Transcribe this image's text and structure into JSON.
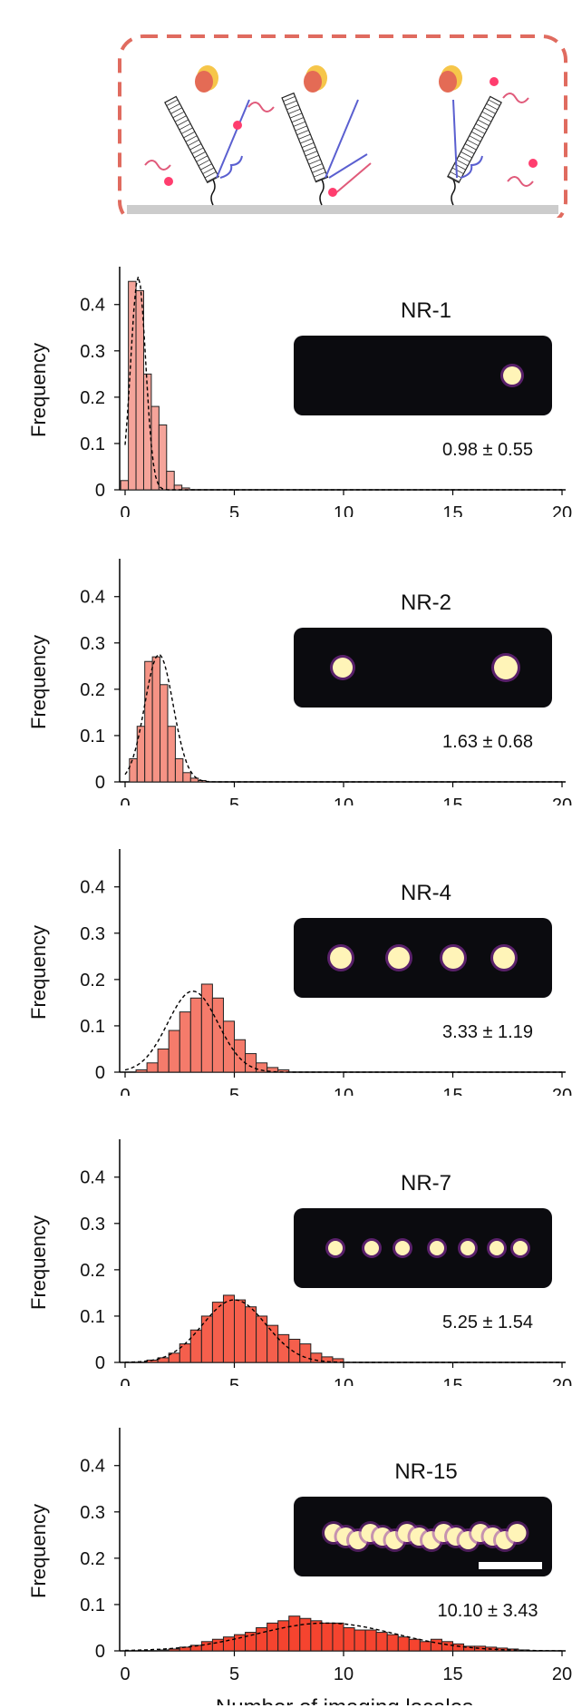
{
  "colors": {
    "border": "#e06b5f",
    "surface": "#cccccc",
    "hist_fills": [
      "#f5a49a",
      "#f59385",
      "#f57b6b",
      "#f55f4c",
      "#f5442f"
    ],
    "image_bg": "#0b0b0f",
    "spot": "#fff4b8",
    "spot_glow": "#8e2fa6"
  },
  "chart_data": [
    {
      "type": "bar",
      "label": "NR-1",
      "stat": "0.98 ± 0.55",
      "ylabel": "Frequency",
      "ylim": [
        0,
        0.47
      ],
      "xlim": [
        0,
        20
      ],
      "yticks": [
        "0",
        "0.1",
        "0.2",
        "0.3",
        "0.4"
      ],
      "xticks": [
        "0",
        "5",
        "10",
        "15",
        "20"
      ],
      "bin_width": 0.35,
      "bin_start": -0.2,
      "values": [
        0.02,
        0.45,
        0.43,
        0.25,
        0.18,
        0.14,
        0.04,
        0.01,
        0.004
      ],
      "fit": {
        "mean": 0.6,
        "sd": 0.34,
        "peak": 0.46
      },
      "spots": 1
    },
    {
      "type": "bar",
      "label": "NR-2",
      "stat": "1.63 ± 0.68",
      "ylabel": "Frequency",
      "ylim": [
        0,
        0.47
      ],
      "xlim": [
        0,
        20
      ],
      "yticks": [
        "0",
        "0.1",
        "0.2",
        "0.3",
        "0.4"
      ],
      "xticks": [
        "0",
        "5",
        "10",
        "15",
        "20"
      ],
      "bin_width": 0.35,
      "bin_start": 0.2,
      "values": [
        0.05,
        0.12,
        0.26,
        0.27,
        0.21,
        0.12,
        0.05,
        0.02,
        0.008,
        0.003
      ],
      "fit": {
        "mean": 1.55,
        "sd": 0.65,
        "peak": 0.275
      },
      "spots": 2
    },
    {
      "type": "bar",
      "label": "NR-4",
      "stat": "3.33 ± 1.19",
      "ylabel": "Frequency",
      "ylim": [
        0,
        0.47
      ],
      "xlim": [
        0,
        20
      ],
      "yticks": [
        "0",
        "0.1",
        "0.2",
        "0.3",
        "0.4"
      ],
      "xticks": [
        "0",
        "5",
        "10",
        "15",
        "20"
      ],
      "bin_width": 0.5,
      "bin_start": 0.5,
      "values": [
        0.005,
        0.02,
        0.05,
        0.09,
        0.13,
        0.16,
        0.19,
        0.16,
        0.11,
        0.07,
        0.04,
        0.02,
        0.01,
        0.005
      ],
      "fit": {
        "mean": 3.1,
        "sd": 1.15,
        "peak": 0.175
      },
      "spots": 4
    },
    {
      "type": "bar",
      "label": "NR-7",
      "stat": "5.25 ± 1.54",
      "ylabel": "Frequency",
      "ylim": [
        0,
        0.47
      ],
      "xlim": [
        0,
        20
      ],
      "yticks": [
        "0",
        "0.1",
        "0.2",
        "0.3",
        "0.4"
      ],
      "xticks": [
        "0",
        "5",
        "10",
        "15",
        "20"
      ],
      "bin_width": 0.5,
      "bin_start": 1.0,
      "values": [
        0.005,
        0.01,
        0.02,
        0.04,
        0.07,
        0.1,
        0.13,
        0.145,
        0.135,
        0.12,
        0.1,
        0.08,
        0.06,
        0.05,
        0.04,
        0.02,
        0.012,
        0.008
      ],
      "fit": {
        "mean": 5.0,
        "sd": 1.45,
        "peak": 0.135
      },
      "spots": 7
    },
    {
      "type": "bar",
      "label": "NR-15",
      "stat": "10.10 ± 3.43",
      "ylabel": "Frequency",
      "ylim": [
        0,
        0.47
      ],
      "xlim": [
        0,
        20
      ],
      "yticks": [
        "0",
        "0.1",
        "0.2",
        "0.3",
        "0.4"
      ],
      "xticks": [
        "0",
        "5",
        "10",
        "15",
        "20"
      ],
      "xlabel": "Number of imaging locales",
      "bin_width": 0.5,
      "bin_start": 1.5,
      "values": [
        0.002,
        0.004,
        0.008,
        0.012,
        0.02,
        0.025,
        0.03,
        0.035,
        0.04,
        0.05,
        0.06,
        0.065,
        0.075,
        0.07,
        0.065,
        0.06,
        0.06,
        0.05,
        0.045,
        0.045,
        0.04,
        0.035,
        0.03,
        0.025,
        0.02,
        0.025,
        0.02,
        0.015,
        0.01,
        0.01,
        0.008,
        0.006,
        0.004,
        0.002
      ],
      "fit": {
        "mean": 9.2,
        "sd": 3.2,
        "peak": 0.06
      },
      "spots": 15,
      "scalebar": true
    }
  ]
}
